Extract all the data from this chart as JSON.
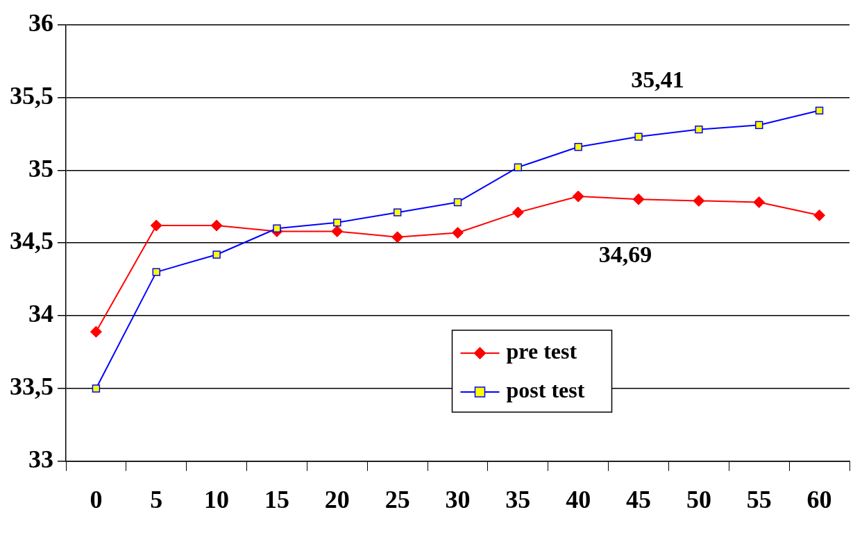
{
  "chart_data": {
    "type": "line",
    "categories": [
      "0",
      "5",
      "10",
      "15",
      "20",
      "25",
      "30",
      "35",
      "40",
      "45",
      "50",
      "55",
      "60"
    ],
    "series": [
      {
        "name": "pre test",
        "color": "#ff0000",
        "marker": "diamond",
        "values": [
          33.89,
          34.62,
          34.62,
          34.58,
          34.58,
          34.54,
          34.57,
          34.71,
          34.82,
          34.8,
          34.79,
          34.78,
          34.69
        ]
      },
      {
        "name": "post test",
        "color": "#0000ff",
        "marker": "square",
        "values": [
          33.5,
          34.3,
          34.42,
          34.6,
          34.64,
          34.71,
          34.78,
          35.02,
          35.16,
          35.23,
          35.28,
          35.31,
          35.41
        ]
      }
    ],
    "ylim": [
      33,
      36
    ],
    "yticks": [
      33,
      {
        "value": 33.5,
        "label": "33,5"
      },
      34,
      {
        "value": 34.5,
        "label": "34,5"
      },
      35,
      {
        "value": 35.5,
        "label": "35,5"
      },
      36
    ],
    "grid": "y",
    "legend": "bottom",
    "annotations": [
      "35,41",
      "34,69"
    ]
  }
}
